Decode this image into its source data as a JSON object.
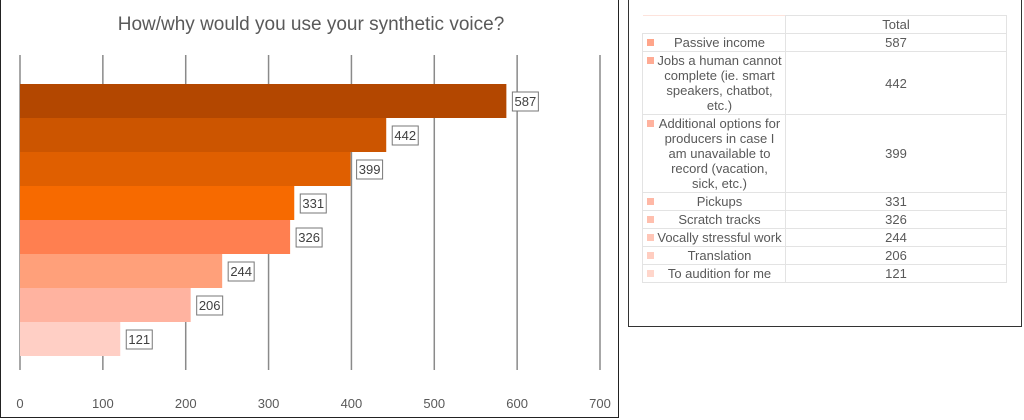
{
  "chart_data": {
    "type": "bar",
    "orientation": "horizontal",
    "title": "How/why would you use your synthetic voice?",
    "categories": [
      "Passive income",
      "Jobs a human cannot complete (ie. smart speakers, chatbot, etc.)",
      "Additional options for producers in case I am unavailable to record (vacation, sick, etc.)",
      "Pickups",
      "Scratch tracks",
      "Vocally stressful work",
      "Translation",
      "To audition for me"
    ],
    "values": [
      587,
      442,
      399,
      331,
      326,
      244,
      206,
      121
    ],
    "colors": [
      "#b34700",
      "#cc5500",
      "#e05f00",
      "#f76a00",
      "#ff7f50",
      "#ffa07a",
      "#ffb3a0",
      "#ffcfc5"
    ],
    "xlim": [
      0,
      700
    ],
    "xticks": [
      0,
      100,
      200,
      300,
      400,
      500,
      600,
      700
    ],
    "grid": true,
    "xlabel": "",
    "ylabel": ""
  },
  "table": {
    "header": "Total",
    "rows": [
      {
        "label": "Passive income",
        "value": "587"
      },
      {
        "label": "Jobs a human cannot complete (ie. smart speakers, chatbot, etc.)",
        "value": "442"
      },
      {
        "label": "Additional options for producers in case I am unavailable to record (vacation, sick, etc.)",
        "value": "399"
      },
      {
        "label": "Pickups",
        "value": "331"
      },
      {
        "label": "Scratch tracks",
        "value": "326"
      },
      {
        "label": "Vocally stressful work",
        "value": "244"
      },
      {
        "label": "Translation",
        "value": "206"
      },
      {
        "label": "To audition for me",
        "value": "121"
      }
    ]
  }
}
